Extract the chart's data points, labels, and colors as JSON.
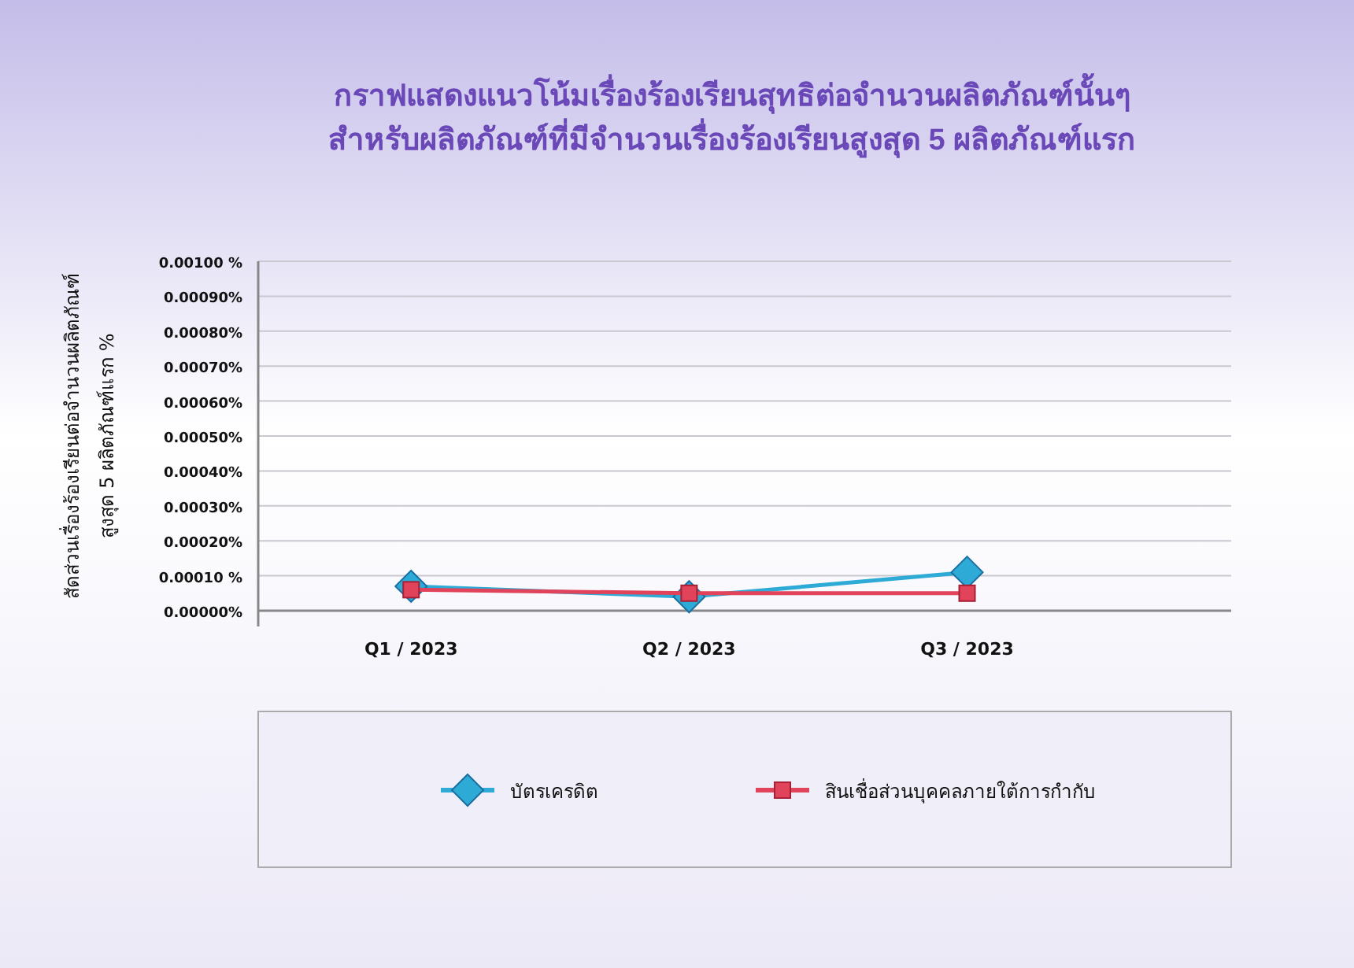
{
  "chart_data": {
    "type": "line",
    "title": "กราฟแสดงแนวโน้มเรื่องร้องเรียนสุทธิต่อจำนวนผลิตภัณฑ์นั้นๆ\nสำหรับผลิตภัณฑ์ที่มีจำนวนเรื่องร้องเรียนสูงสุด 5 ผลิตภัณฑ์แรก",
    "ylabel": "สัดส่วนเรื่องร้องเรียนต่อจำนวนผลิตภัณฑ์\nสูงสุด 5 ผลิตภัณฑ์แรก   %",
    "categories": [
      "Q1 / 2023",
      "Q2 / 2023",
      "Q3 / 2023"
    ],
    "series": [
      {
        "name": "บัตรเครดิต",
        "color": "#2eaad6",
        "marker": "diamond",
        "values": [
          7e-05,
          4e-05,
          0.00011
        ]
      },
      {
        "name": "สินเชื่อส่วนบุคคลภายใต้การกำกับ",
        "color": "#e0435a",
        "marker": "square",
        "values": [
          6e-05,
          5e-05,
          5e-05
        ]
      }
    ],
    "ylim": [
      0,
      0.001
    ],
    "yticks": [
      {
        "value": 0,
        "label": "0.00000%"
      },
      {
        "value": 0.0001,
        "label": "0.00010 %"
      },
      {
        "value": 0.0002,
        "label": "0.00020%"
      },
      {
        "value": 0.0003,
        "label": "0.00030%"
      },
      {
        "value": 0.0004,
        "label": "0.00040%"
      },
      {
        "value": 0.0005,
        "label": "0.00050%"
      },
      {
        "value": 0.0006,
        "label": "0.00060%"
      },
      {
        "value": 0.0007,
        "label": "0.00070%"
      },
      {
        "value": 0.0008,
        "label": "0.00080%"
      },
      {
        "value": 0.0009,
        "label": "0.00090%"
      },
      {
        "value": 0.001,
        "label": "0.00100 %"
      }
    ],
    "grid": "y",
    "legend": "bottom"
  }
}
